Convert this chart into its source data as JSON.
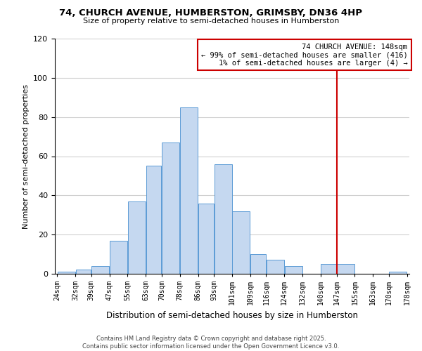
{
  "title1": "74, CHURCH AVENUE, HUMBERSTON, GRIMSBY, DN36 4HP",
  "title2": "Size of property relative to semi-detached houses in Humberston",
  "xlabel": "Distribution of semi-detached houses by size in Humberston",
  "ylabel": "Number of semi-detached properties",
  "bin_edges": [
    24,
    32,
    39,
    47,
    55,
    63,
    70,
    78,
    86,
    93,
    101,
    109,
    116,
    124,
    132,
    140,
    147,
    155,
    163,
    170,
    178
  ],
  "bin_counts": [
    1,
    2,
    4,
    17,
    37,
    55,
    67,
    85,
    36,
    56,
    32,
    10,
    7,
    4,
    0,
    5,
    5,
    0,
    0,
    1
  ],
  "bar_facecolor": "#c5d8f0",
  "bar_edgecolor": "#5b9bd5",
  "grid_color": "#d0d0d0",
  "property_line_x": 147,
  "property_line_color": "#cc0000",
  "annotation_title": "74 CHURCH AVENUE: 148sqm",
  "annotation_line1": "← 99% of semi-detached houses are smaller (416)",
  "annotation_line2": "1% of semi-detached houses are larger (4) →",
  "annotation_box_color": "#cc0000",
  "ylim": [
    0,
    120
  ],
  "yticks": [
    0,
    20,
    40,
    60,
    80,
    100,
    120
  ],
  "tick_labels": [
    "24sqm",
    "32sqm",
    "39sqm",
    "47sqm",
    "55sqm",
    "63sqm",
    "70sqm",
    "78sqm",
    "86sqm",
    "93sqm",
    "101sqm",
    "109sqm",
    "116sqm",
    "124sqm",
    "132sqm",
    "140sqm",
    "147sqm",
    "155sqm",
    "163sqm",
    "170sqm",
    "178sqm"
  ],
  "footnote1": "Contains HM Land Registry data © Crown copyright and database right 2025.",
  "footnote2": "Contains public sector information licensed under the Open Government Licence v3.0.",
  "bg_color": "#ffffff"
}
